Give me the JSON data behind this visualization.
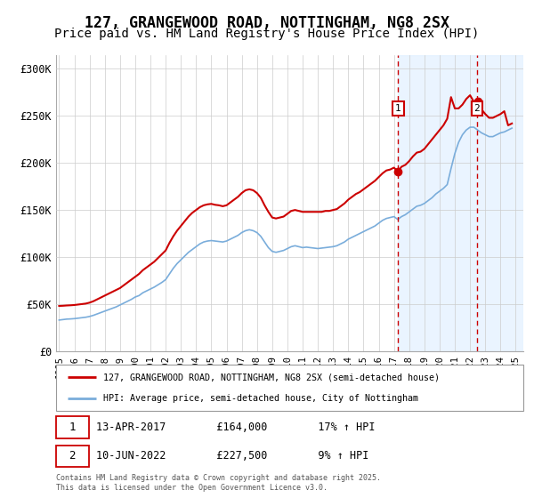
{
  "title": "127, GRANGEWOOD ROAD, NOTTINGHAM, NG8 2SX",
  "subtitle": "Price paid vs. HM Land Registry's House Price Index (HPI)",
  "title_fontsize": 12,
  "subtitle_fontsize": 10,
  "ylabel_ticks": [
    "£0",
    "£50K",
    "£100K",
    "£150K",
    "£200K",
    "£250K",
    "£300K"
  ],
  "ytick_vals": [
    0,
    50000,
    100000,
    150000,
    200000,
    250000,
    300000
  ],
  "ylim": [
    0,
    315000
  ],
  "xlim_start": 1994.8,
  "xlim_end": 2025.5,
  "xticks": [
    1995,
    1996,
    1997,
    1998,
    1999,
    2000,
    2001,
    2002,
    2003,
    2004,
    2005,
    2006,
    2007,
    2008,
    2009,
    2010,
    2011,
    2012,
    2013,
    2014,
    2015,
    2016,
    2017,
    2018,
    2019,
    2020,
    2021,
    2022,
    2023,
    2024,
    2025
  ],
  "line1_color": "#cc0000",
  "line2_color": "#7aaddb",
  "vline_color": "#cc0000",
  "bg_shade_color": "#ddeeff",
  "transaction1_date": 2017.28,
  "transaction2_date": 2022.45,
  "legend1_label": "127, GRANGEWOOD ROAD, NOTTINGHAM, NG8 2SX (semi-detached house)",
  "legend2_label": "HPI: Average price, semi-detached house, City of Nottingham",
  "footnote": "Contains HM Land Registry data © Crown copyright and database right 2025.\nThis data is licensed under the Open Government Licence v3.0.",
  "grid_color": "#cccccc",
  "hpi_data_x": [
    1995.0,
    1995.25,
    1995.5,
    1995.75,
    1996.0,
    1996.25,
    1996.5,
    1996.75,
    1997.0,
    1997.25,
    1997.5,
    1997.75,
    1998.0,
    1998.25,
    1998.5,
    1998.75,
    1999.0,
    1999.25,
    1999.5,
    1999.75,
    2000.0,
    2000.25,
    2000.5,
    2000.75,
    2001.0,
    2001.25,
    2001.5,
    2001.75,
    2002.0,
    2002.25,
    2002.5,
    2002.75,
    2003.0,
    2003.25,
    2003.5,
    2003.75,
    2004.0,
    2004.25,
    2004.5,
    2004.75,
    2005.0,
    2005.25,
    2005.5,
    2005.75,
    2006.0,
    2006.25,
    2006.5,
    2006.75,
    2007.0,
    2007.25,
    2007.5,
    2007.75,
    2008.0,
    2008.25,
    2008.5,
    2008.75,
    2009.0,
    2009.25,
    2009.5,
    2009.75,
    2010.0,
    2010.25,
    2010.5,
    2010.75,
    2011.0,
    2011.25,
    2011.5,
    2011.75,
    2012.0,
    2012.25,
    2012.5,
    2012.75,
    2013.0,
    2013.25,
    2013.5,
    2013.75,
    2014.0,
    2014.25,
    2014.5,
    2014.75,
    2015.0,
    2015.25,
    2015.5,
    2015.75,
    2016.0,
    2016.25,
    2016.5,
    2016.75,
    2017.0,
    2017.25,
    2017.5,
    2017.75,
    2018.0,
    2018.25,
    2018.5,
    2018.75,
    2019.0,
    2019.25,
    2019.5,
    2019.75,
    2020.0,
    2020.25,
    2020.5,
    2020.75,
    2021.0,
    2021.25,
    2021.5,
    2021.75,
    2022.0,
    2022.25,
    2022.5,
    2022.75,
    2023.0,
    2023.25,
    2023.5,
    2023.75,
    2024.0,
    2024.25,
    2024.5,
    2024.75
  ],
  "hpi_data_y": [
    33000,
    33500,
    34000,
    34200,
    34500,
    35000,
    35500,
    36000,
    36800,
    38000,
    39500,
    41000,
    42500,
    44000,
    45500,
    47000,
    49000,
    51000,
    53000,
    55000,
    57500,
    59000,
    62000,
    64000,
    66000,
    68000,
    70500,
    73000,
    76000,
    82000,
    88000,
    93000,
    97000,
    101000,
    105000,
    108000,
    111000,
    114000,
    116000,
    117000,
    117500,
    117000,
    116500,
    116000,
    117000,
    119000,
    121000,
    123000,
    126000,
    128000,
    129000,
    128000,
    126000,
    122000,
    116000,
    110000,
    106000,
    105000,
    106000,
    107000,
    109000,
    111000,
    112000,
    111000,
    110000,
    110500,
    110000,
    109500,
    109000,
    109500,
    110000,
    110500,
    111000,
    112000,
    114000,
    116000,
    119000,
    121000,
    123000,
    125000,
    127000,
    129000,
    131000,
    133000,
    136000,
    139000,
    141000,
    142000,
    143000,
    140000,
    143000,
    145000,
    148000,
    151000,
    154000,
    155000,
    157000,
    160000,
    163000,
    167000,
    170000,
    173000,
    177000,
    194000,
    210000,
    222000,
    230000,
    235000,
    238000,
    238000,
    235000,
    232000,
    230000,
    228000,
    228000,
    230000,
    232000,
    233000,
    235000,
    237000
  ],
  "price_data_x": [
    1995.0,
    1995.25,
    1995.5,
    1995.75,
    1996.0,
    1996.25,
    1996.5,
    1996.75,
    1997.0,
    1997.25,
    1997.5,
    1997.75,
    1998.0,
    1998.25,
    1998.5,
    1998.75,
    1999.0,
    1999.25,
    1999.5,
    1999.75,
    2000.0,
    2000.25,
    2000.5,
    2000.75,
    2001.0,
    2001.25,
    2001.5,
    2001.75,
    2002.0,
    2002.25,
    2002.5,
    2002.75,
    2003.0,
    2003.25,
    2003.5,
    2003.75,
    2004.0,
    2004.25,
    2004.5,
    2004.75,
    2005.0,
    2005.25,
    2005.5,
    2005.75,
    2006.0,
    2006.25,
    2006.5,
    2006.75,
    2007.0,
    2007.25,
    2007.5,
    2007.75,
    2008.0,
    2008.25,
    2008.5,
    2008.75,
    2009.0,
    2009.25,
    2009.5,
    2009.75,
    2010.0,
    2010.25,
    2010.5,
    2010.75,
    2011.0,
    2011.25,
    2011.5,
    2011.75,
    2012.0,
    2012.25,
    2012.5,
    2012.75,
    2013.0,
    2013.25,
    2013.5,
    2013.75,
    2014.0,
    2014.25,
    2014.5,
    2014.75,
    2015.0,
    2015.25,
    2015.5,
    2015.75,
    2016.0,
    2016.25,
    2016.5,
    2016.75,
    2017.0,
    2017.25,
    2017.5,
    2017.75,
    2018.0,
    2018.25,
    2018.5,
    2018.75,
    2019.0,
    2019.25,
    2019.5,
    2019.75,
    2020.0,
    2020.25,
    2020.5,
    2020.75,
    2021.0,
    2021.25,
    2021.5,
    2021.75,
    2022.0,
    2022.25,
    2022.5,
    2022.75,
    2023.0,
    2023.25,
    2023.5,
    2023.75,
    2024.0,
    2024.25,
    2024.5,
    2024.75
  ],
  "price_data_y": [
    48000,
    48200,
    48500,
    48700,
    49000,
    49500,
    50000,
    50500,
    51500,
    53000,
    55000,
    57000,
    59000,
    61000,
    63000,
    65000,
    67000,
    70000,
    73000,
    76000,
    79000,
    82000,
    86000,
    89000,
    92000,
    95000,
    99000,
    103000,
    107000,
    115000,
    122000,
    128000,
    133000,
    138000,
    143000,
    147000,
    150000,
    153000,
    155000,
    156000,
    156500,
    155500,
    155000,
    154000,
    155000,
    158000,
    161000,
    164000,
    168000,
    171000,
    172000,
    171000,
    168000,
    163000,
    155000,
    148000,
    142000,
    141000,
    142000,
    143000,
    146000,
    149000,
    150000,
    149000,
    148000,
    148000,
    148000,
    148000,
    148000,
    148000,
    149000,
    149000,
    150000,
    151000,
    154000,
    157000,
    161000,
    164000,
    167000,
    169000,
    172000,
    175000,
    178000,
    181000,
    185000,
    189000,
    192000,
    193000,
    195000,
    191000,
    196000,
    198000,
    202000,
    207000,
    211000,
    212000,
    215000,
    220000,
    225000,
    230000,
    235000,
    240000,
    247000,
    270000,
    258000,
    258000,
    262000,
    268000,
    272000,
    265000,
    265000,
    257000,
    252000,
    248000,
    248000,
    250000,
    252000,
    255000,
    240000,
    242000
  ]
}
